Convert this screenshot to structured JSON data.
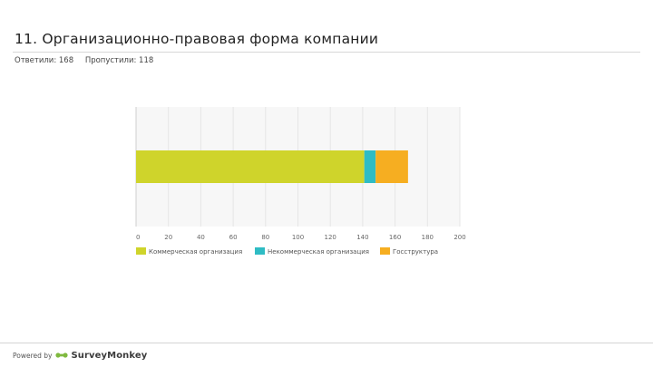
{
  "question": {
    "title": "11. Организационно-правовая форма компании"
  },
  "stats": {
    "answered": "Ответили: 168",
    "skipped": "Пропустили: 118"
  },
  "chart_data": {
    "type": "bar",
    "orientation": "horizontal",
    "stacked": true,
    "categories": [
      ""
    ],
    "series": [
      {
        "name": "Коммерческая организация",
        "values": [
          141
        ],
        "color": "#cfd42b"
      },
      {
        "name": "Некоммерческая организация",
        "values": [
          7
        ],
        "color": "#2fbcc4"
      },
      {
        "name": "Госструктура",
        "values": [
          20
        ],
        "color": "#f6ae21"
      }
    ],
    "xlim": [
      0,
      200
    ],
    "x_ticks": [
      0,
      20,
      40,
      60,
      80,
      100,
      120,
      140,
      160,
      180,
      200
    ],
    "grid": true,
    "legend_position": "bottom",
    "title": "",
    "xlabel": "",
    "ylabel": ""
  },
  "footer": {
    "powered_by": "Powered by",
    "brand": "SurveyMonkey",
    "brand_icon": "surveymonkey-logo-icon",
    "brand_color": "#7fb93f"
  }
}
